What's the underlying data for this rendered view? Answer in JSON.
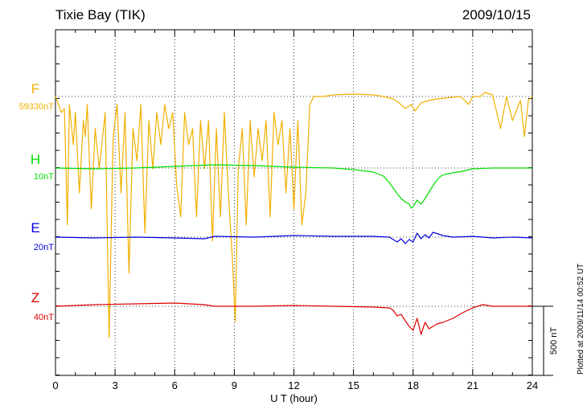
{
  "header": {
    "title": "Tixie Bay (TIK)",
    "date": "2009/10/15"
  },
  "footer": {
    "plotted": "Plotted at 2009/11/14 00:52 UT"
  },
  "chart_data": {
    "type": "line",
    "title": "Tixie Bay (TIK)",
    "xlabel": "U T (hour)",
    "ylabel": "",
    "xlim": [
      0,
      24
    ],
    "xticks": [
      "0",
      "3",
      "6",
      "9",
      "12",
      "15",
      "18",
      "21",
      "24"
    ],
    "grid": true,
    "scale_bar": {
      "label": "500 nT",
      "value_nT": 500
    },
    "colors": {
      "F": "#f0b000",
      "H": "#00dd00",
      "E": "#0000dd",
      "Z": "#dd0000"
    },
    "series": [
      {
        "name": "F",
        "scale_label": "59330nT",
        "x": [
          0,
          0.3,
          0.45,
          0.6,
          0.7,
          0.9,
          1.0,
          1.2,
          1.4,
          1.5,
          1.6,
          1.8,
          2.0,
          2.2,
          2.5,
          2.7,
          2.9,
          3.1,
          3.3,
          3.5,
          3.7,
          3.9,
          4.1,
          4.3,
          4.5,
          4.7,
          4.9,
          5.1,
          5.3,
          5.5,
          5.7,
          5.9,
          6.1,
          6.3,
          6.5,
          6.7,
          6.9,
          7.1,
          7.3,
          7.5,
          7.7,
          7.9,
          8.1,
          8.3,
          8.5,
          8.7,
          8.9,
          9.05,
          9.2,
          9.4,
          9.6,
          9.8,
          10.0,
          10.2,
          10.4,
          10.6,
          10.8,
          11.0,
          11.2,
          11.4,
          11.6,
          11.8,
          12.0,
          12.2,
          12.4,
          12.6,
          12.8,
          13.0,
          13.5,
          14.0,
          15.0,
          16.0,
          16.5,
          17.0,
          17.3,
          17.6,
          17.9,
          18.1,
          18.4,
          18.8,
          19.2,
          19.6,
          20.0,
          20.4,
          20.8,
          21.0,
          21.4,
          21.6,
          22.0,
          22.4,
          22.7,
          23.0,
          23.4,
          23.6,
          23.8,
          24.0
        ],
        "y": [
          0,
          -20,
          -15,
          -160,
          -10,
          -60,
          -20,
          -120,
          -30,
          -50,
          -10,
          -140,
          -40,
          -90,
          -20,
          -300,
          -50,
          -10,
          -120,
          -20,
          -220,
          -40,
          -80,
          -10,
          -170,
          -30,
          -90,
          -20,
          -60,
          -10,
          -40,
          -20,
          -110,
          -150,
          -20,
          -60,
          -40,
          -150,
          -30,
          -90,
          -30,
          -180,
          -40,
          -150,
          -20,
          -120,
          -200,
          -280,
          -90,
          -40,
          -160,
          -30,
          -100,
          -40,
          -80,
          -30,
          -150,
          -20,
          -60,
          -30,
          -120,
          -40,
          -140,
          -30,
          -160,
          -120,
          -10,
          0,
          0,
          2,
          3,
          2,
          0,
          -3,
          -8,
          -15,
          -10,
          -18,
          -8,
          -5,
          -3,
          -2,
          -1,
          0,
          -10,
          0,
          0,
          5,
          2,
          -40,
          0,
          -30,
          -5,
          -50,
          -5,
          0
        ]
      },
      {
        "name": "H",
        "scale_label": "10nT",
        "x": [
          0,
          2,
          4,
          6,
          8,
          10,
          12,
          14,
          15,
          16,
          16.5,
          16.8,
          17.0,
          17.2,
          17.4,
          17.6,
          17.8,
          17.9,
          18.0,
          18.2,
          18.4,
          18.6,
          18.8,
          19.0,
          19.2,
          19.4,
          19.6,
          19.8,
          20.0,
          20.5,
          21.0,
          22,
          24
        ],
        "y": [
          0,
          -1,
          0,
          2,
          4,
          3,
          1,
          0,
          -2,
          -5,
          -10,
          -18,
          -25,
          -32,
          -38,
          -42,
          -45,
          -50,
          -48,
          -40,
          -45,
          -38,
          -30,
          -22,
          -15,
          -10,
          -8,
          -7,
          -6,
          -4,
          -1,
          0,
          0
        ]
      },
      {
        "name": "E",
        "scale_label": "20nT",
        "x": [
          0,
          2,
          4,
          6,
          7.5,
          8,
          10,
          12,
          14,
          16,
          16.8,
          17.0,
          17.2,
          17.4,
          17.6,
          17.8,
          18.0,
          18.2,
          18.4,
          18.6,
          18.8,
          19.0,
          19.5,
          20,
          21,
          22,
          23,
          24
        ],
        "y": [
          0,
          -1,
          0,
          -1,
          -2,
          1,
          0,
          2,
          1,
          1,
          0,
          -3,
          -6,
          -2,
          -8,
          -3,
          -6,
          5,
          -2,
          3,
          -1,
          6,
          2,
          0,
          1,
          -1,
          0,
          -1
        ]
      },
      {
        "name": "Z",
        "scale_label": "40nT",
        "x": [
          0,
          2,
          4,
          6,
          7.5,
          8,
          10,
          12,
          14,
          16,
          16.8,
          17.0,
          17.2,
          17.4,
          17.6,
          17.8,
          18.0,
          18.2,
          18.4,
          18.6,
          18.8,
          19.0,
          19.2,
          19.5,
          20,
          20.5,
          21,
          21.5,
          22,
          24
        ],
        "y": [
          0,
          2,
          3,
          4,
          2,
          0,
          0,
          1,
          0,
          -1,
          -2,
          -5,
          -12,
          -10,
          -18,
          -25,
          -30,
          -15,
          -35,
          -20,
          -28,
          -25,
          -22,
          -20,
          -15,
          -8,
          -2,
          2,
          0,
          0
        ]
      }
    ]
  }
}
